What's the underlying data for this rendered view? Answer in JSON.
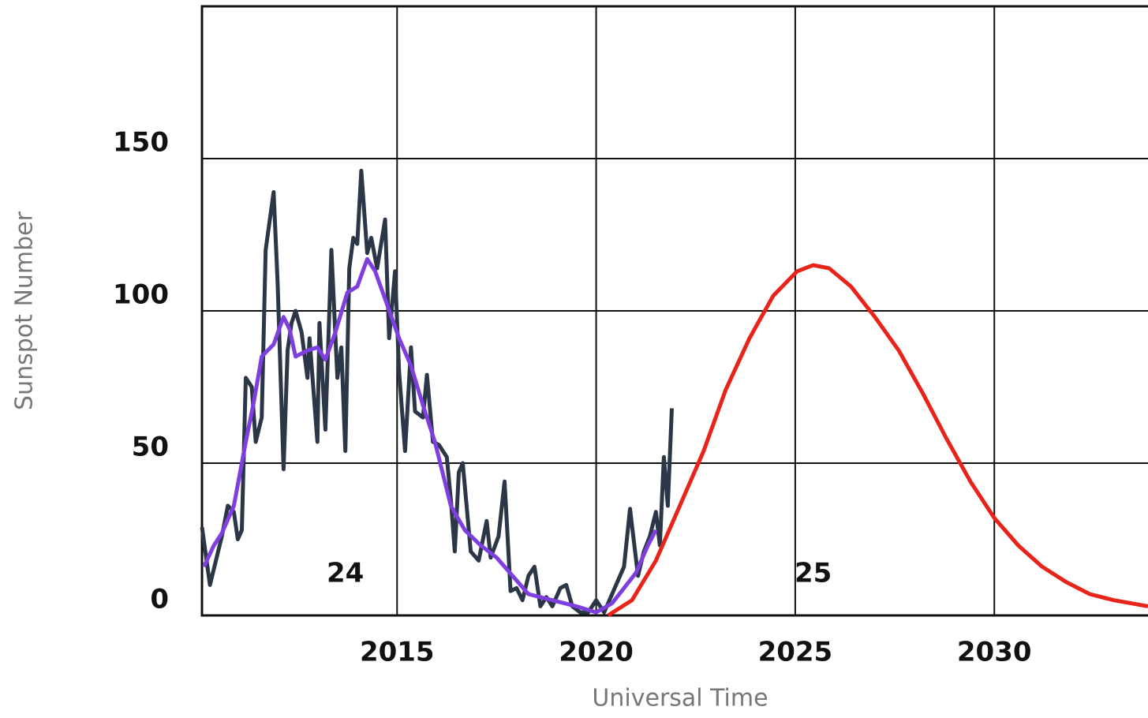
{
  "chart_data": {
    "type": "line",
    "xlabel": "Universal Time",
    "ylabel": "Sunspot Number",
    "xlim": [
      2010.1,
      2033.86
    ],
    "xticks": [
      2015,
      2020,
      2025,
      2030
    ],
    "ylim": [
      0,
      200
    ],
    "yticks": [
      0,
      50,
      100,
      150
    ],
    "grid": true,
    "series": [
      {
        "color": "#2b3647",
        "x": [
          2010.1,
          2010.3,
          2010.6,
          2010.75,
          2010.9,
          2011.0,
          2011.1,
          2011.2,
          2011.35,
          2011.45,
          2011.6,
          2011.7,
          2011.9,
          2012.0,
          2012.15,
          2012.25,
          2012.35,
          2012.45,
          2012.6,
          2012.75,
          2012.8,
          2013.0,
          2013.05,
          2013.2,
          2013.35,
          2013.5,
          2013.6,
          2013.7,
          2013.8,
          2013.9,
          2014.0,
          2014.1,
          2014.25,
          2014.35,
          2014.5,
          2014.7,
          2014.8,
          2014.95,
          2015.05,
          2015.2,
          2015.35,
          2015.45,
          2015.65,
          2015.75,
          2015.9,
          2016.05,
          2016.25,
          2016.35,
          2016.45,
          2016.55,
          2016.65,
          2016.85,
          2017.05,
          2017.25,
          2017.35,
          2017.55,
          2017.7,
          2017.85,
          2018.0,
          2018.15,
          2018.3,
          2018.45,
          2018.6,
          2018.75,
          2018.9,
          2019.1,
          2019.25,
          2019.4,
          2019.6,
          2019.8,
          2020.0,
          2020.2,
          2020.5,
          2020.7,
          2020.85,
          2021.05,
          2021.2,
          2021.35,
          2021.5,
          2021.6,
          2021.7,
          2021.8,
          2021.9
        ],
        "values": [
          29,
          10,
          26,
          36,
          34,
          25,
          28,
          78,
          75,
          57,
          65,
          120,
          139,
          109,
          48,
          87,
          96,
          100,
          93,
          78,
          91,
          57,
          96,
          61,
          120,
          78,
          88,
          54,
          114,
          124,
          122,
          146,
          119,
          124,
          114,
          130,
          91,
          113,
          80,
          54,
          88,
          67,
          65,
          79,
          57,
          56,
          52,
          38,
          21,
          47,
          50,
          21,
          18,
          31,
          19,
          26,
          44,
          8,
          9,
          5,
          13,
          16,
          3,
          6,
          3,
          9,
          10,
          3,
          1,
          1,
          5,
          1,
          10,
          16,
          35,
          13,
          21,
          26,
          34,
          23,
          52,
          36,
          68
        ]
      },
      {
        "color": "#7f3fe0",
        "x": [
          2010.15,
          2010.4,
          2010.6,
          2010.9,
          2011.2,
          2011.4,
          2011.6,
          2011.9,
          2012.15,
          2012.3,
          2012.45,
          2012.75,
          2013.0,
          2013.2,
          2013.45,
          2013.75,
          2014.0,
          2014.25,
          2014.45,
          2014.75,
          2015.05,
          2015.35,
          2015.65,
          2015.95,
          2016.35,
          2016.7,
          2017.1,
          2017.5,
          2017.9,
          2018.3,
          2018.9,
          2019.5,
          2020.0,
          2020.4,
          2020.7,
          2021.0,
          2021.3,
          2021.5
        ],
        "values": [
          16,
          23,
          27,
          36,
          57,
          70,
          85,
          89,
          98,
          94,
          85,
          87,
          88,
          84,
          93,
          106,
          108,
          117,
          113,
          102,
          91,
          82,
          69,
          57,
          36,
          28,
          23,
          19,
          13,
          7,
          5,
          3,
          1,
          4,
          9,
          14,
          23,
          28
        ]
      },
      {
        "color": "#e8231a",
        "x": [
          2020.3,
          2020.9,
          2021.5,
          2022.1,
          2022.7,
          2023.25,
          2023.85,
          2024.45,
          2025.05,
          2025.45,
          2025.85,
          2026.4,
          2027.0,
          2027.6,
          2028.2,
          2028.8,
          2029.4,
          2030.0,
          2030.6,
          2031.2,
          2031.8,
          2032.4,
          2033.0,
          2033.86
        ],
        "values": [
          0,
          5,
          18,
          36,
          54,
          74,
          91,
          105,
          113,
          115,
          114,
          108,
          98,
          87,
          73,
          58,
          44,
          32,
          23,
          16,
          11,
          7,
          5,
          3
        ]
      }
    ],
    "annotations": [
      {
        "text": "24",
        "x": 2013.7,
        "y": 13.5
      },
      {
        "text": "25",
        "x": 2025.45,
        "y": 13.5
      }
    ]
  }
}
